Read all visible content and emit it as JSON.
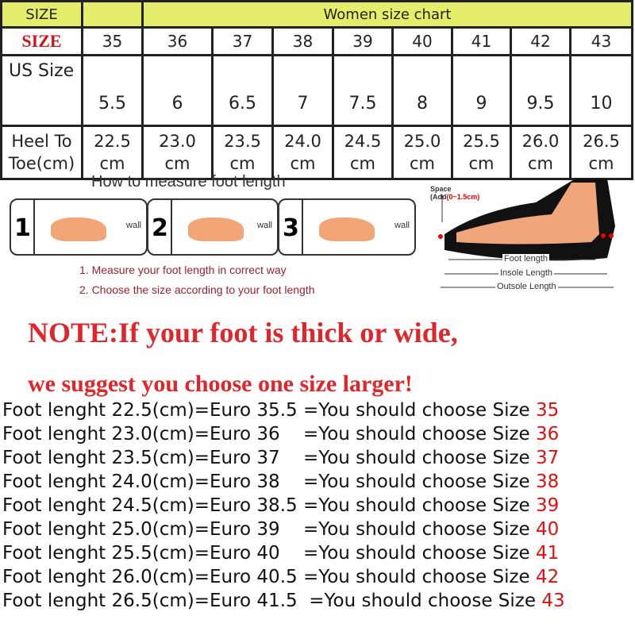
{
  "table": {
    "header": {
      "size_label": "SIZE",
      "title": "Women size chart"
    },
    "row_size": {
      "label": "SIZE",
      "values": [
        "35",
        "36",
        "37",
        "38",
        "39",
        "40",
        "41",
        "42",
        "43"
      ]
    },
    "row_us": {
      "label": "US Size",
      "values": [
        "5.5",
        "6",
        "6.5",
        "7",
        "7.5",
        "8",
        "9",
        "9.5",
        "10"
      ]
    },
    "row_heel": {
      "label_1": "Heel To",
      "label_2": "Toe(cm)",
      "values": [
        "22.5",
        "23.0",
        "23.5",
        "24.0",
        "24.5",
        "25.0",
        "25.5",
        "26.0",
        "26.5"
      ],
      "unit": "cm"
    }
  },
  "measure": {
    "title": "How to measure foot length",
    "panels": [
      {
        "num": "1",
        "wall": "wall"
      },
      {
        "num": "2",
        "wall": "wall"
      },
      {
        "num": "3",
        "wall": "wall"
      }
    ],
    "steps": [
      "1. Measure your foot length in correct way",
      "2. Choose the size according to your foot length"
    ]
  },
  "diagram": {
    "space": "Space",
    "add": "(Add",
    "range": "(0~1.5cm)",
    "foot": "Foot length",
    "insole": "Insole Length",
    "outsole": "Outsole Length"
  },
  "note": {
    "line1": "NOTE:If your foot is thick or wide,",
    "line2": "we suggest you choose one size larger!"
  },
  "lines": [
    {
      "text": "Foot lenght 22.5(cm)=Euro 35.5 =You should choose Size ",
      "size": "35"
    },
    {
      "text": "Foot lenght 23.0(cm)=Euro 36    =You should choose Size ",
      "size": "36"
    },
    {
      "text": "Foot lenght 23.5(cm)=Euro 37    =You should choose Size ",
      "size": "37"
    },
    {
      "text": "Foot lenght 24.0(cm)=Euro 38    =You should choose Size ",
      "size": "38"
    },
    {
      "text": "Foot lenght 24.5(cm)=Euro 38.5 =You should choose Size ",
      "size": "39"
    },
    {
      "text": "Foot lenght 25.0(cm)=Euro 39    =You should choose Size ",
      "size": "40"
    },
    {
      "text": "Foot lenght 25.5(cm)=Euro 40    =You should choose Size ",
      "size": "41"
    },
    {
      "text": "Foot lenght 26.0(cm)=Euro 40.5 =You should choose Size ",
      "size": "42"
    },
    {
      "text": "Foot lenght 26.5(cm)=Euro 41.5  =You should choose Size ",
      "size": "43"
    }
  ]
}
